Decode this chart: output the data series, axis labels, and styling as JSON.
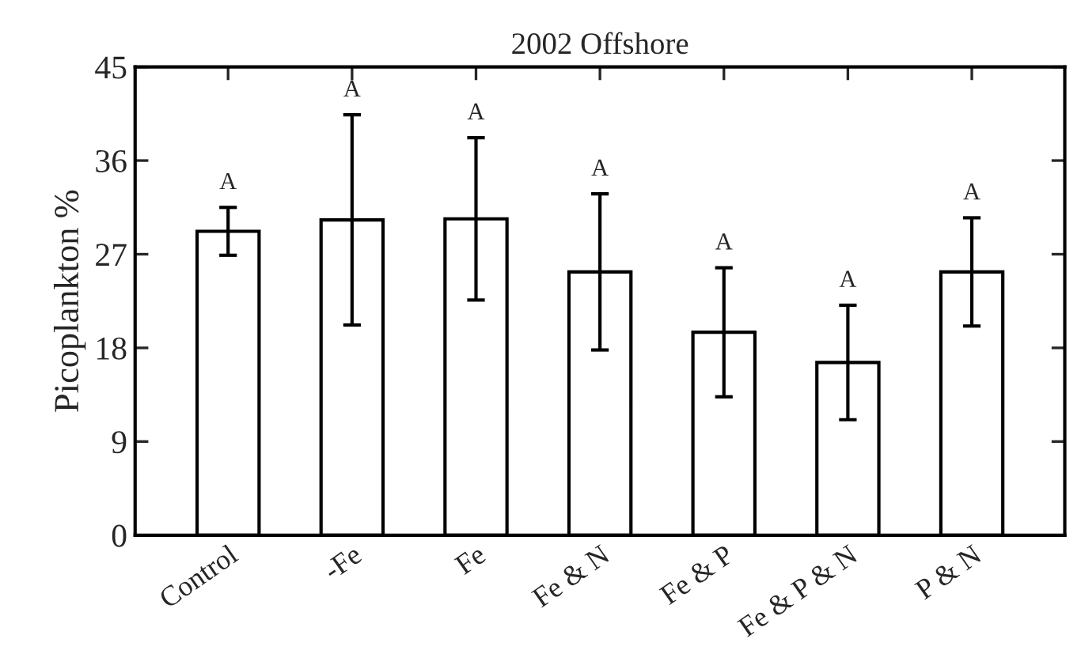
{
  "chart_data": {
    "type": "bar",
    "title": "2002 Offshore",
    "ylabel": "Picoplankton %",
    "categories": [
      "Control",
      "-Fe",
      "Fe",
      "Fe & N",
      "Fe & P",
      "Fe & P & N",
      "P & N"
    ],
    "values": [
      29.2,
      30.3,
      30.4,
      25.3,
      19.5,
      16.6,
      25.3
    ],
    "errors": [
      2.3,
      10.1,
      7.8,
      7.5,
      6.2,
      5.5,
      5.2
    ],
    "color": "#ffffff",
    "ylim": [
      0,
      45
    ],
    "yticks": [
      0,
      9,
      18,
      27,
      36,
      45
    ],
    "grid": false,
    "annotations": [
      "A",
      "A",
      "A",
      "A",
      "A",
      "A",
      "A"
    ]
  }
}
